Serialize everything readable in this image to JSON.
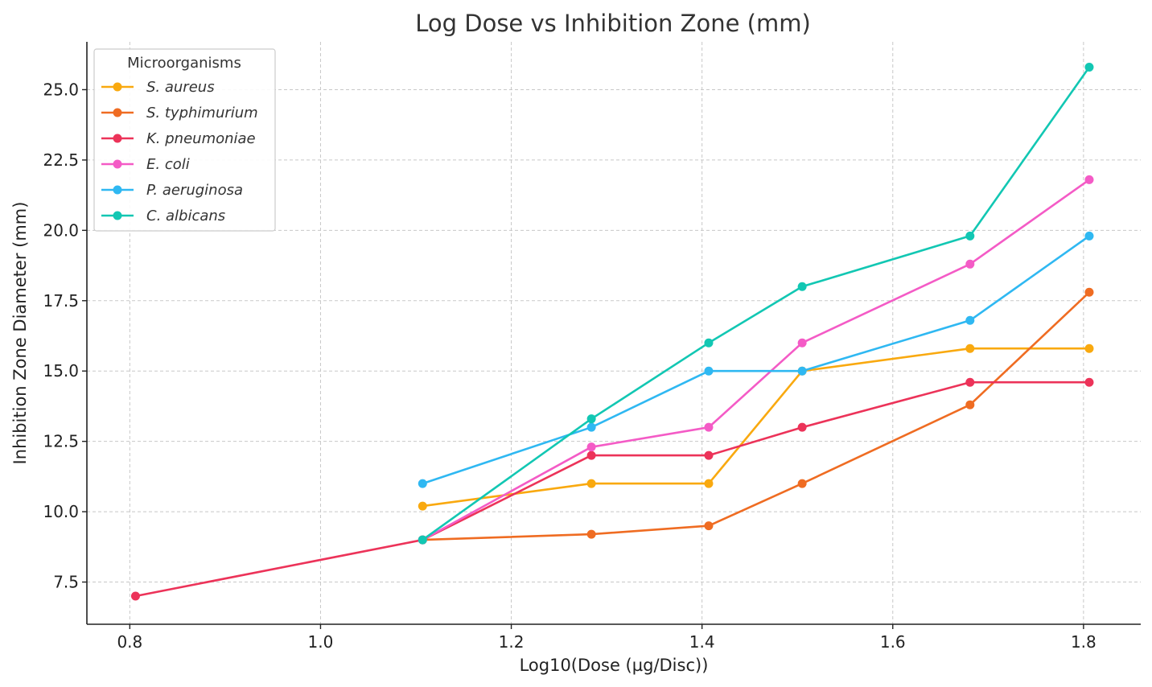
{
  "chart_data": {
    "type": "line",
    "title": "Log Dose vs Inhibition Zone (mm)",
    "xlabel": "Log10(Dose (µg/Disc))",
    "ylabel": "Inhibition Zone Diameter (mm)",
    "xlim": [
      0.755,
      1.86
    ],
    "ylim": [
      6.0,
      26.7
    ],
    "xticks": [
      0.8,
      1.0,
      1.2,
      1.4,
      1.6,
      1.8
    ],
    "xtick_labels": [
      "0.8",
      "1.0",
      "1.2",
      "1.4",
      "1.6",
      "1.8"
    ],
    "yticks": [
      7.5,
      10.0,
      12.5,
      15.0,
      17.5,
      20.0,
      22.5,
      25.0
    ],
    "ytick_labels": [
      "7.5",
      "10.0",
      "12.5",
      "15.0",
      "17.5",
      "20.0",
      "22.5",
      "25.0"
    ],
    "grid": true,
    "legend": {
      "title": "Microorganisms",
      "placement": "top-left"
    },
    "series": [
      {
        "name": "S. aureus",
        "color": "#f9a90f",
        "points": [
          [
            1.107,
            10.2
          ],
          [
            1.284,
            11.0
          ],
          [
            1.407,
            11.0
          ],
          [
            1.505,
            15.0
          ],
          [
            1.681,
            15.8
          ],
          [
            1.806,
            15.8
          ]
        ]
      },
      {
        "name": "S. typhimurium",
        "color": "#ef6c22",
        "points": [
          [
            1.107,
            9.0
          ],
          [
            1.284,
            9.2
          ],
          [
            1.407,
            9.5
          ],
          [
            1.505,
            11.0
          ],
          [
            1.681,
            13.8
          ],
          [
            1.806,
            17.8
          ]
        ]
      },
      {
        "name": "K. pneumoniae",
        "color": "#ec3359",
        "points": [
          [
            0.806,
            7.0
          ],
          [
            1.107,
            9.0
          ],
          [
            1.284,
            12.0
          ],
          [
            1.407,
            12.0
          ],
          [
            1.505,
            13.0
          ],
          [
            1.681,
            14.6
          ],
          [
            1.806,
            14.6
          ]
        ]
      },
      {
        "name": "E. coli",
        "color": "#f45bc6",
        "points": [
          [
            1.107,
            9.0
          ],
          [
            1.284,
            12.3
          ],
          [
            1.407,
            13.0
          ],
          [
            1.505,
            16.0
          ],
          [
            1.681,
            18.8
          ],
          [
            1.806,
            21.8
          ]
        ]
      },
      {
        "name": "P. aeruginosa",
        "color": "#2fb8f2",
        "points": [
          [
            1.107,
            11.0
          ],
          [
            1.284,
            13.0
          ],
          [
            1.407,
            15.0
          ],
          [
            1.505,
            15.0
          ],
          [
            1.681,
            16.8
          ],
          [
            1.806,
            19.8
          ]
        ]
      },
      {
        "name": "C. albicans",
        "color": "#12c7b3",
        "points": [
          [
            1.107,
            9.0
          ],
          [
            1.284,
            13.3
          ],
          [
            1.407,
            16.0
          ],
          [
            1.505,
            18.0
          ],
          [
            1.681,
            19.8
          ],
          [
            1.806,
            25.8
          ]
        ]
      }
    ]
  }
}
